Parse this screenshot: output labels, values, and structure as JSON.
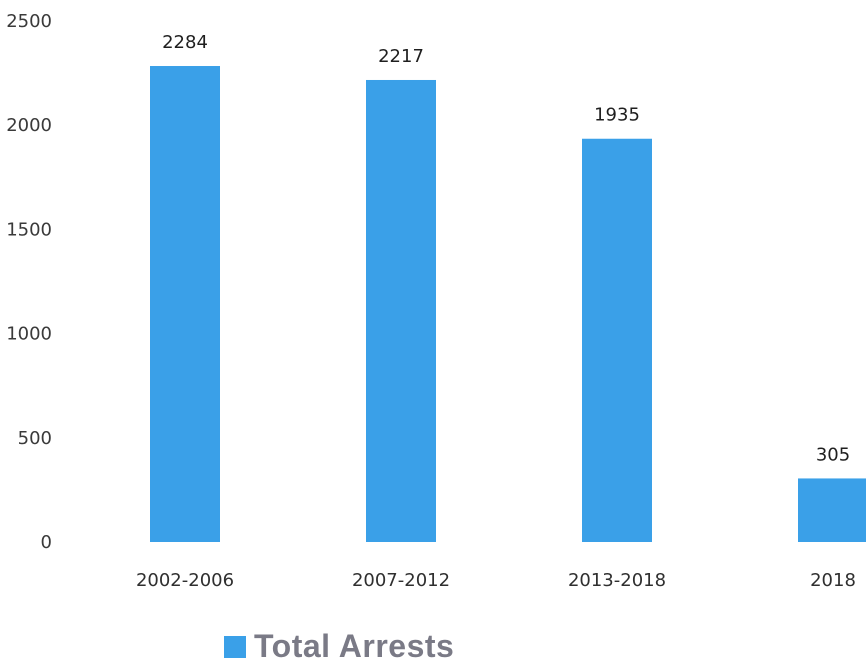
{
  "chart_data": {
    "type": "bar",
    "categories": [
      "2002-2006",
      "2007-2012",
      "2013-2018",
      "2018"
    ],
    "values": [
      2284,
      2217,
      1935,
      305
    ],
    "data_labels": [
      "2284",
      "2217",
      "1935",
      "305"
    ],
    "y_ticks": [
      "0",
      "500",
      "1000",
      "1500",
      "2000",
      "2500"
    ],
    "ylim": [
      0,
      2500
    ],
    "legend": "Total Arrests",
    "legend_position": "bottom",
    "grid": false,
    "colors": {
      "bar": "#3aa0e8",
      "text": "#2f2f2f",
      "legend_text": "#7a7a86"
    }
  }
}
